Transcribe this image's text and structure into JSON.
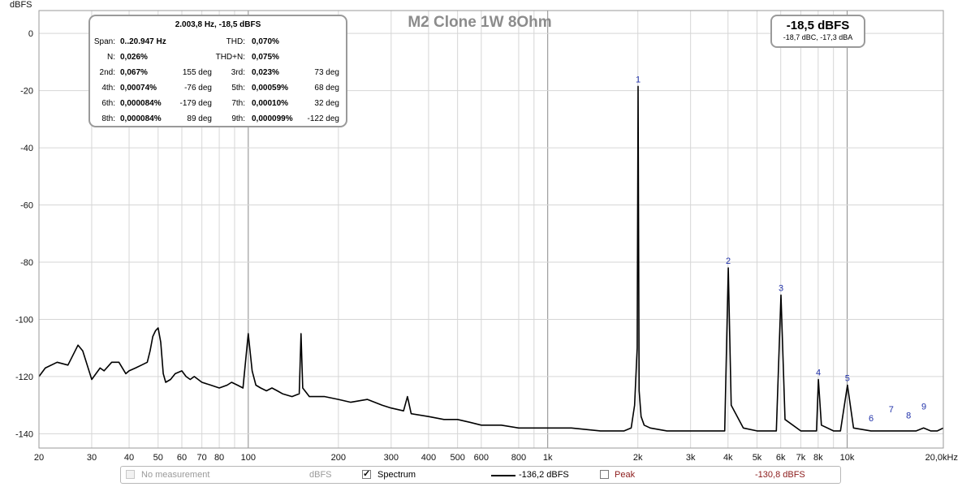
{
  "chart_data": {
    "type": "line",
    "title": "M2 Clone 1W 8Ohm",
    "ylabel": "dBFS",
    "xlabel": "",
    "x_scale": "log",
    "xlim": [
      20,
      20947
    ],
    "ylim": [
      -145,
      8
    ],
    "x_ticks": [
      {
        "v": 20,
        "t": "20"
      },
      {
        "v": 30,
        "t": "30"
      },
      {
        "v": 40,
        "t": "40"
      },
      {
        "v": 50,
        "t": "50"
      },
      {
        "v": 60,
        "t": "60"
      },
      {
        "v": 70,
        "t": "70"
      },
      {
        "v": 80,
        "t": "80"
      },
      {
        "v": 100,
        "t": "100"
      },
      {
        "v": 200,
        "t": "200"
      },
      {
        "v": 300,
        "t": "300"
      },
      {
        "v": 400,
        "t": "400"
      },
      {
        "v": 500,
        "t": "500"
      },
      {
        "v": 600,
        "t": "600"
      },
      {
        "v": 800,
        "t": "800"
      },
      {
        "v": 1000,
        "t": "1k"
      },
      {
        "v": 2000,
        "t": "2k"
      },
      {
        "v": 3000,
        "t": "3k"
      },
      {
        "v": 4000,
        "t": "4k"
      },
      {
        "v": 5000,
        "t": "5k"
      },
      {
        "v": 6000,
        "t": "6k"
      },
      {
        "v": 7000,
        "t": "7k"
      },
      {
        "v": 8000,
        "t": "8k"
      },
      {
        "v": 10000,
        "t": "10k"
      },
      {
        "v": 20947,
        "t": "20,0kHz"
      }
    ],
    "x_minor_grid": [
      90,
      900,
      9000
    ],
    "x_major_grid": [
      100,
      1000,
      10000
    ],
    "y_ticks": [
      0,
      -20,
      -40,
      -60,
      -80,
      -100,
      -120,
      -140
    ],
    "grid": true,
    "series": [
      {
        "name": "Spectrum",
        "color": "#000000",
        "x": [
          20,
          21,
          23,
          25,
          27,
          28,
          30,
          32,
          33,
          35,
          37,
          39,
          40,
          42,
          44,
          46,
          47,
          48,
          49,
          50,
          51,
          52,
          53,
          55,
          57,
          60,
          62,
          64,
          66,
          70,
          75,
          80,
          85,
          88,
          92,
          96,
          100,
          103,
          106,
          110,
          115,
          120,
          125,
          130,
          140,
          148,
          150,
          152,
          160,
          180,
          200,
          220,
          250,
          280,
          300,
          330,
          340,
          350,
          400,
          450,
          500,
          550,
          600,
          700,
          800,
          900,
          1000,
          1200,
          1500,
          1800,
          1900,
          1950,
          1990,
          2004,
          2020,
          2050,
          2100,
          2200,
          2500,
          3000,
          3500,
          3900,
          4008,
          4100,
          4500,
          5000,
          5800,
          6012,
          6200,
          7000,
          7900,
          8016,
          8200,
          9000,
          9500,
          10020,
          10500,
          12000,
          14000,
          16000,
          17000,
          18000,
          19000,
          20000,
          20947
        ],
        "y": [
          -120,
          -117,
          -115,
          -116,
          -109,
          -111,
          -121,
          -117,
          -118,
          -115,
          -115,
          -119,
          -118,
          -117,
          -116,
          -115,
          -111,
          -106,
          -104,
          -103,
          -108,
          -119,
          -122,
          -121,
          -119,
          -118,
          -120,
          -121,
          -120,
          -122,
          -123,
          -124,
          -123,
          -122,
          -123,
          -124,
          -105,
          -118,
          -123,
          -124,
          -125,
          -124,
          -125,
          -126,
          -127,
          -126,
          -105,
          -124,
          -127,
          -127,
          -128,
          -129,
          -128,
          -130,
          -131,
          -132,
          -127,
          -133,
          -134,
          -135,
          -135,
          -136,
          -137,
          -137,
          -138,
          -138,
          -138,
          -138,
          -139,
          -139,
          -138,
          -130,
          -110,
          -18.5,
          -125,
          -134,
          -137,
          -138,
          -139,
          -139,
          -139,
          -139,
          -82,
          -130,
          -138,
          -139,
          -139,
          -91.5,
          -135,
          -139,
          -139,
          -121,
          -137,
          -139,
          -139,
          -123,
          -138,
          -139,
          -139,
          -139,
          -139,
          -138,
          -139,
          -139,
          -138
        ]
      }
    ],
    "harmonic_labels": [
      {
        "label": "1",
        "f": 2004,
        "level": -18.5
      },
      {
        "label": "2",
        "f": 4008,
        "level": -82
      },
      {
        "label": "3",
        "f": 6012,
        "level": -91.5
      },
      {
        "label": "4",
        "f": 8016,
        "level": -121
      },
      {
        "label": "5",
        "f": 10020,
        "level": -123
      },
      {
        "label": "6",
        "f": 12024,
        "level": -137
      },
      {
        "label": "7",
        "f": 14028,
        "level": -134
      },
      {
        "label": "8",
        "f": 16032,
        "level": -136
      },
      {
        "label": "9",
        "f": 18036,
        "level": -133
      }
    ]
  },
  "panel": {
    "header": "2.003,8 Hz, -18,5 dBFS",
    "span_label": "Span:",
    "span_value": "0..20.947 Hz",
    "thd_label": "THD:",
    "thd_value": "0,070%",
    "n_label": "N:",
    "n_value": "0,026%",
    "thdn_label": "THD+N:",
    "thdn_value": "0,075%",
    "harmonics": [
      [
        {
          "label": "2nd:",
          "value": "0,067%",
          "deg": "155 deg"
        },
        {
          "label": "3rd:",
          "value": "0,023%",
          "deg": "73 deg"
        }
      ],
      [
        {
          "label": "4th:",
          "value": "0,00074%",
          "deg": "-76 deg"
        },
        {
          "label": "5th:",
          "value": "0,00059%",
          "deg": "68 deg"
        }
      ],
      [
        {
          "label": "6th:",
          "value": "0,000084%",
          "deg": "-179 deg"
        },
        {
          "label": "7th:",
          "value": "0,00010%",
          "deg": "32 deg"
        }
      ],
      [
        {
          "label": "8th:",
          "value": "0,000084%",
          "deg": "89 deg"
        },
        {
          "label": "9th:",
          "value": "0,000099%",
          "deg": "-122 deg"
        }
      ]
    ]
  },
  "level_box": {
    "main": "-18,5 dBFS",
    "sub": "-18,7 dBC, -17,3 dBA"
  },
  "legend": {
    "no_measurement_label": "No measurement",
    "no_measurement_unit": "dBFS",
    "spectrum_label": "Spectrum",
    "spectrum_checked": true,
    "spectrum_value": "-136,2 dBFS",
    "peak_label": "Peak",
    "peak_value": "-130,8 dBFS",
    "peak_color": "#8b1a1a",
    "disabled_color": "#9a9a9a"
  }
}
